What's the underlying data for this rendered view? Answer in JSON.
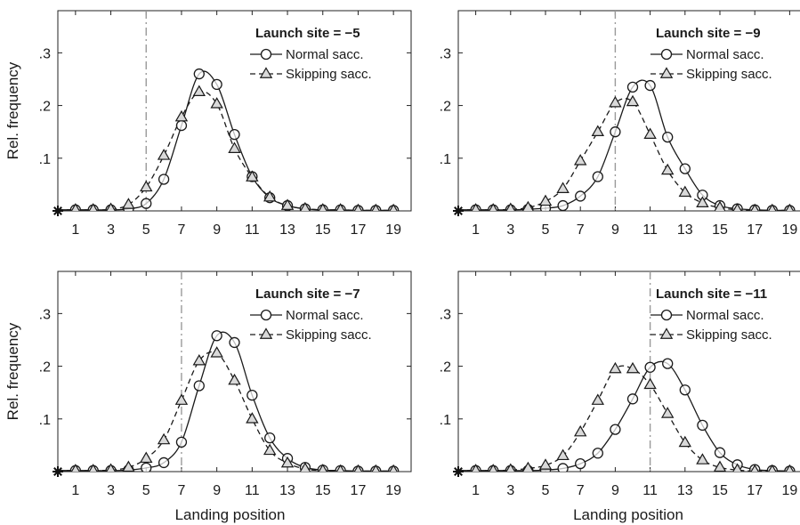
{
  "chart_data": [
    {
      "type": "line",
      "title": "Launch site = −5",
      "launch_site": -5,
      "xlabel": "",
      "ylabel": "Rel. frequency",
      "xlim": [
        0,
        20
      ],
      "ylim": [
        0,
        0.38
      ],
      "xticks": [
        "1",
        "3",
        "5",
        "7",
        "9",
        "11",
        "13",
        "15",
        "17",
        "19"
      ],
      "yticks": [
        ".1",
        ".2",
        ".3"
      ],
      "vline": 5,
      "series": [
        {
          "name": "Normal sacc.",
          "marker": "circle",
          "dash": "solid",
          "x": [
            0,
            1,
            2,
            3,
            4,
            5,
            6,
            7,
            8,
            9,
            10,
            11,
            12,
            13,
            14,
            15,
            16,
            17,
            18,
            19
          ],
          "y": [
            0.002,
            0.002,
            0.002,
            0.002,
            0.004,
            0.014,
            0.06,
            0.162,
            0.26,
            0.24,
            0.145,
            0.065,
            0.025,
            0.01,
            0.004,
            0.002,
            0.002,
            0.001,
            0.001,
            0.001
          ]
        },
        {
          "name": "Skipping sacc.",
          "marker": "triangle",
          "dash": "dashed",
          "x": [
            0,
            1,
            2,
            3,
            4,
            5,
            6,
            7,
            8,
            9,
            10,
            11,
            12,
            13,
            14,
            15,
            16,
            17,
            18,
            19
          ],
          "y": [
            0.002,
            0.002,
            0.002,
            0.003,
            0.012,
            0.045,
            0.105,
            0.178,
            0.226,
            0.203,
            0.118,
            0.064,
            0.026,
            0.01,
            0.004,
            0.002,
            0.002,
            0.001,
            0.001,
            0.001
          ]
        }
      ]
    },
    {
      "type": "line",
      "title": "Launch site = −9",
      "launch_site": -9,
      "xlabel": "",
      "ylabel": "",
      "xlim": [
        0,
        20
      ],
      "ylim": [
        0,
        0.38
      ],
      "xticks": [
        "1",
        "3",
        "5",
        "7",
        "9",
        "11",
        "13",
        "15",
        "17",
        "19"
      ],
      "yticks": [
        ".1",
        ".2",
        ".3"
      ],
      "vline": 9,
      "series": [
        {
          "name": "Normal sacc.",
          "marker": "circle",
          "dash": "solid",
          "x": [
            0,
            1,
            2,
            3,
            4,
            5,
            6,
            7,
            8,
            9,
            10,
            11,
            12,
            13,
            14,
            15,
            16,
            17,
            18,
            19
          ],
          "y": [
            0.002,
            0.002,
            0.002,
            0.002,
            0.003,
            0.005,
            0.01,
            0.028,
            0.065,
            0.15,
            0.235,
            0.238,
            0.14,
            0.08,
            0.03,
            0.01,
            0.004,
            0.002,
            0.001,
            0.001
          ]
        },
        {
          "name": "Skipping sacc.",
          "marker": "triangle",
          "dash": "dashed",
          "x": [
            0,
            1,
            2,
            3,
            4,
            5,
            6,
            7,
            8,
            9,
            10,
            11,
            12,
            13,
            14,
            15,
            16,
            17,
            18,
            19
          ],
          "y": [
            0.002,
            0.002,
            0.002,
            0.003,
            0.006,
            0.018,
            0.042,
            0.095,
            0.15,
            0.205,
            0.207,
            0.145,
            0.077,
            0.035,
            0.015,
            0.006,
            0.002,
            0.001,
            0.001,
            0.001
          ]
        }
      ]
    },
    {
      "type": "line",
      "title": "Launch site = −7",
      "launch_site": -7,
      "xlabel": "Landing position",
      "ylabel": "Rel. frequency",
      "xlim": [
        0,
        20
      ],
      "ylim": [
        0,
        0.38
      ],
      "xticks": [
        "1",
        "3",
        "5",
        "7",
        "9",
        "11",
        "13",
        "15",
        "17",
        "19"
      ],
      "yticks": [
        ".1",
        ".2",
        ".3"
      ],
      "vline": 7,
      "series": [
        {
          "name": "Normal sacc.",
          "marker": "circle",
          "dash": "solid",
          "x": [
            0,
            1,
            2,
            3,
            4,
            5,
            6,
            7,
            8,
            9,
            10,
            11,
            12,
            13,
            14,
            15,
            16,
            17,
            18,
            19
          ],
          "y": [
            0.002,
            0.002,
            0.002,
            0.002,
            0.003,
            0.007,
            0.017,
            0.056,
            0.163,
            0.258,
            0.245,
            0.145,
            0.064,
            0.025,
            0.008,
            0.003,
            0.002,
            0.001,
            0.001,
            0.001
          ]
        },
        {
          "name": "Skipping sacc.",
          "marker": "triangle",
          "dash": "dashed",
          "x": [
            0,
            1,
            2,
            3,
            4,
            5,
            6,
            7,
            8,
            9,
            10,
            11,
            12,
            13,
            14,
            15,
            16,
            17,
            18,
            19
          ],
          "y": [
            0.002,
            0.002,
            0.002,
            0.003,
            0.008,
            0.025,
            0.06,
            0.135,
            0.21,
            0.225,
            0.173,
            0.1,
            0.04,
            0.016,
            0.005,
            0.002,
            0.001,
            0.001,
            0.001,
            0.001
          ]
        }
      ]
    },
    {
      "type": "line",
      "title": "Launch site = −11",
      "launch_site": -11,
      "xlabel": "Landing position",
      "ylabel": "",
      "xlim": [
        0,
        20
      ],
      "ylim": [
        0,
        0.38
      ],
      "xticks": [
        "1",
        "3",
        "5",
        "7",
        "9",
        "11",
        "13",
        "15",
        "17",
        "19"
      ],
      "yticks": [
        ".1",
        ".2",
        ".3"
      ],
      "vline": 11,
      "series": [
        {
          "name": "Normal sacc.",
          "marker": "circle",
          "dash": "solid",
          "x": [
            0,
            1,
            2,
            3,
            4,
            5,
            6,
            7,
            8,
            9,
            10,
            11,
            12,
            13,
            14,
            15,
            16,
            17,
            18,
            19
          ],
          "y": [
            0.002,
            0.002,
            0.002,
            0.002,
            0.002,
            0.003,
            0.006,
            0.015,
            0.035,
            0.08,
            0.138,
            0.198,
            0.205,
            0.155,
            0.088,
            0.036,
            0.013,
            0.004,
            0.002,
            0.001
          ]
        },
        {
          "name": "Skipping sacc.",
          "marker": "triangle",
          "dash": "dashed",
          "x": [
            0,
            1,
            2,
            3,
            4,
            5,
            6,
            7,
            8,
            9,
            10,
            11,
            12,
            13,
            14,
            15,
            16,
            17,
            18,
            19
          ],
          "y": [
            0.002,
            0.002,
            0.002,
            0.003,
            0.006,
            0.012,
            0.03,
            0.075,
            0.135,
            0.195,
            0.195,
            0.165,
            0.11,
            0.055,
            0.022,
            0.008,
            0.003,
            0.001,
            0.001,
            0.001
          ]
        }
      ]
    }
  ]
}
